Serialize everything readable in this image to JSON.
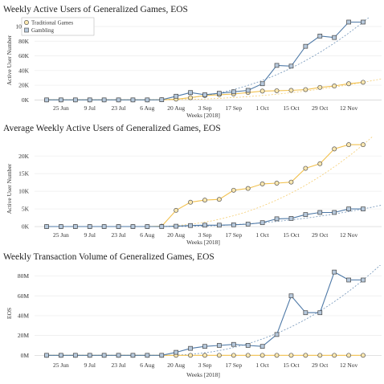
{
  "chart_data": [
    {
      "type": "line",
      "title": "Weekly Active Users of Generalized Games, EOS",
      "xlabel": "Weeks [2018]",
      "ylabel": "Active User Number",
      "x_ticks": [
        "25 Jun",
        "9 Jul",
        "23 Jul",
        "6 Aug",
        "20 Aug",
        "3 Sep",
        "17 Sep",
        "1 Oct",
        "15 Oct",
        "29 Oct",
        "12 Nov"
      ],
      "y_ticks": [
        "0K",
        "20K",
        "40K",
        "60K",
        "80K",
        "100K"
      ],
      "ylim": [
        -4000,
        112000
      ],
      "legend": {
        "position": "top-left",
        "entries": [
          "Traditional Games",
          "Gambling"
        ]
      },
      "series": [
        {
          "name": "Traditional Games",
          "color": "#f2c14e",
          "marker": "circle",
          "values": [
            0,
            0,
            0,
            0,
            0,
            0,
            0,
            0,
            200,
            1000,
            3000,
            6000,
            7000,
            8000,
            10000,
            12000,
            12500,
            13000,
            14000,
            17000,
            19000,
            22000,
            24000
          ]
        },
        {
          "name": "Gambling",
          "color": "#4e79a7",
          "marker": "square",
          "values": [
            0,
            0,
            0,
            0,
            0,
            0,
            0,
            0,
            200,
            5000,
            10000,
            7000,
            9000,
            11000,
            13000,
            22000,
            47000,
            46000,
            73000,
            87000,
            85000,
            106000,
            106000
          ]
        }
      ]
    },
    {
      "type": "line",
      "title": "Average Weekly Active Users of Generalized Games, EOS",
      "xlabel": "Weeks [2018]",
      "ylabel": "Active User Number",
      "x_ticks": [
        "25 Jun",
        "9 Jul",
        "23 Jul",
        "6 Aug",
        "20 Aug",
        "3 Sep",
        "17 Sep",
        "1 Oct",
        "15 Oct",
        "29 Oct",
        "12 Nov"
      ],
      "y_ticks": [
        "0K",
        "5K",
        "10K",
        "15K",
        "20K"
      ],
      "ylim": [
        -900,
        25500
      ],
      "series": [
        {
          "name": "Traditional Games",
          "color": "#f2c14e",
          "marker": "circle",
          "values": [
            0,
            0,
            0,
            0,
            0,
            0,
            0,
            0,
            100,
            4600,
            6900,
            7500,
            7700,
            10300,
            10800,
            12100,
            12300,
            12600,
            16500,
            17800,
            22000,
            23200,
            23200
          ]
        },
        {
          "name": "Gambling",
          "color": "#4e79a7",
          "marker": "square",
          "values": [
            0,
            0,
            0,
            0,
            0,
            0,
            0,
            0,
            0,
            100,
            300,
            400,
            400,
            500,
            700,
            1100,
            2200,
            2300,
            3400,
            4000,
            4000,
            5000,
            5000
          ]
        }
      ]
    },
    {
      "type": "line",
      "title": "Weekly Transaction Volume of Generalized Games, EOS",
      "xlabel": "Weeks [2018]",
      "ylabel": "EOS",
      "x_ticks": [
        "25 Jun",
        "9 Jul",
        "23 Jul",
        "6 Aug",
        "20 Aug",
        "3 Sep",
        "17 Sep",
        "1 Oct",
        "15 Oct",
        "29 Oct",
        "12 Nov"
      ],
      "y_ticks": [
        "0M",
        "20M",
        "40M",
        "60M",
        "80M"
      ],
      "ylim": [
        -3000000,
        91000000
      ],
      "series": [
        {
          "name": "Traditional Games",
          "color": "#f2c14e",
          "marker": "circle",
          "values": [
            0,
            0,
            0,
            0,
            0,
            0,
            0,
            0,
            0,
            0,
            0,
            0,
            0,
            0,
            0,
            0,
            0,
            0,
            0,
            0,
            0,
            0,
            0
          ]
        },
        {
          "name": "Gambling",
          "color": "#4e79a7",
          "marker": "square",
          "values": [
            0,
            0,
            0,
            0,
            0,
            0,
            0,
            0,
            0,
            3000000,
            7000000,
            9000000,
            10000000,
            11000000,
            10000000,
            9000000,
            21000000,
            60000000,
            43000000,
            43000000,
            84000000,
            76000000,
            76000000
          ]
        }
      ]
    }
  ]
}
